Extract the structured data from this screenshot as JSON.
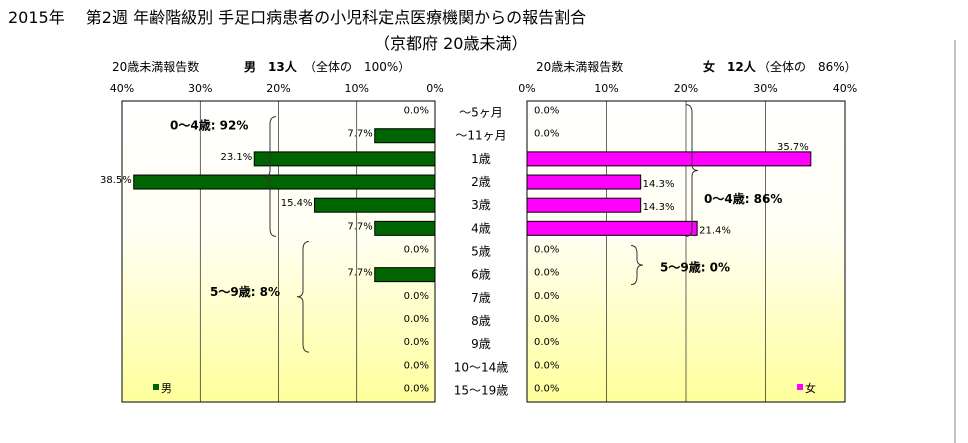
{
  "title": "2015年　 第2週 年齢階級別 手足口病患者の小児科定点医療機関からの報告割合",
  "subtitle": "（京都府 20歳未満）",
  "chart_data": {
    "type": "bar",
    "categories": [
      "～5ヶ月",
      "～11ヶ月",
      "1歳",
      "2歳",
      "3歳",
      "4歳",
      "5歳",
      "6歳",
      "7歳",
      "8歳",
      "9歳",
      "10～14歳",
      "15～19歳"
    ],
    "male": {
      "header_label": "20歳未満報告数",
      "header_sex": "男",
      "header_count": "13人",
      "header_share": "（全体の　100%）",
      "legend": "男",
      "color": "#006400",
      "values": [
        0.0,
        7.7,
        23.1,
        38.5,
        15.4,
        7.7,
        0.0,
        7.7,
        0.0,
        0.0,
        0.0,
        0.0,
        0.0
      ],
      "labels": [
        "0.0%",
        "7.7%",
        "23.1%",
        "38.5%",
        "15.4%",
        "7.7%",
        "0.0%",
        "7.7%",
        "0.0%",
        "0.0%",
        "0.0%",
        "0.0%",
        "0.0%"
      ],
      "xlim": [
        0,
        40
      ],
      "ticks": [
        "40%",
        "30%",
        "20%",
        "10%",
        "0%"
      ],
      "annotations": [
        "0～4歳: 92%",
        "5～9歳: 8%"
      ]
    },
    "female": {
      "header_label": "20歳未満報告数",
      "header_sex": "女",
      "header_count": "12人",
      "header_share": "（全体の　86%）",
      "legend": "女",
      "color": "#ff00ff",
      "values": [
        0.0,
        0.0,
        35.7,
        14.3,
        14.3,
        21.4,
        0.0,
        0.0,
        0.0,
        0.0,
        0.0,
        0.0,
        0.0
      ],
      "labels": [
        "0.0%",
        "0.0%",
        "35.7%",
        "14.3%",
        "14.3%",
        "21.4%",
        "0.0%",
        "0.0%",
        "0.0%",
        "0.0%",
        "0.0%",
        "0.0%",
        "0.0%"
      ],
      "xlim": [
        0,
        40
      ],
      "ticks": [
        "0%",
        "10%",
        "20%",
        "30%",
        "40%"
      ],
      "annotations": [
        "0～4歳: 86%",
        "5～9歳: 0%"
      ]
    },
    "grid": true
  }
}
